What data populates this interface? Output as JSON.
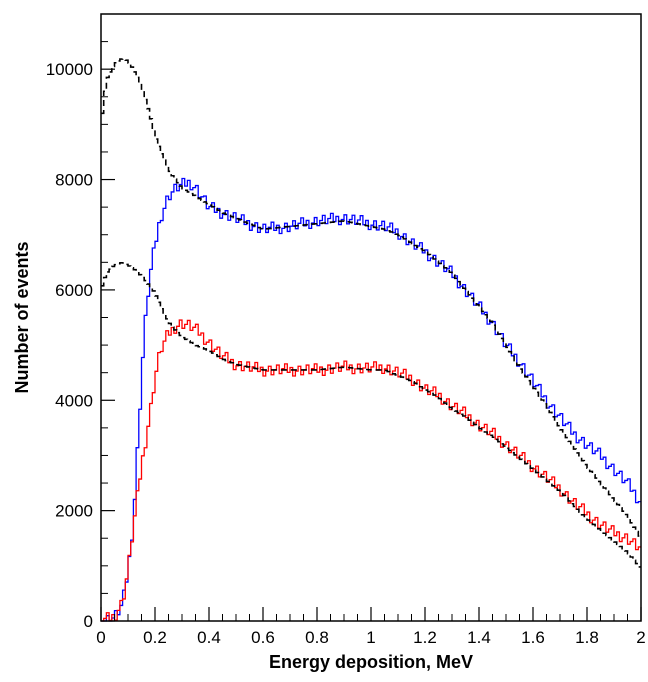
{
  "chart_data": {
    "type": "line",
    "xlabel": "Energy deposition, MeV",
    "ylabel": "Number of events",
    "xlim": [
      0,
      2
    ],
    "ylim": [
      0,
      11000
    ],
    "x_ticks": [
      0,
      0.2,
      0.4,
      0.6,
      0.8,
      1,
      1.2,
      1.4,
      1.6,
      1.8,
      2
    ],
    "x_tick_labels": [
      "0",
      "0.2",
      "0.4",
      "0.6",
      "0.8",
      "1",
      "1.2",
      "1.4",
      "1.6",
      "1.8",
      "2"
    ],
    "y_ticks": [
      0,
      2000,
      4000,
      6000,
      8000,
      10000
    ],
    "y_tick_labels": [
      "0",
      "2000",
      "4000",
      "6000",
      "8000",
      "10000"
    ],
    "grid": false,
    "legend": "none",
    "series": [
      {
        "color": "#0000ff",
        "dash": "solid",
        "points": [
          [
            0,
            0
          ],
          [
            0.05,
            60
          ],
          [
            0.08,
            300
          ],
          [
            0.1,
            900
          ],
          [
            0.12,
            1800
          ],
          [
            0.14,
            3500
          ],
          [
            0.16,
            5200
          ],
          [
            0.18,
            6200
          ],
          [
            0.2,
            6800
          ],
          [
            0.22,
            7300
          ],
          [
            0.25,
            7700
          ],
          [
            0.28,
            7850
          ],
          [
            0.3,
            7900
          ],
          [
            0.33,
            7950
          ],
          [
            0.36,
            7800
          ],
          [
            0.4,
            7500
          ],
          [
            0.45,
            7400
          ],
          [
            0.5,
            7300
          ],
          [
            0.55,
            7200
          ],
          [
            0.6,
            7100
          ],
          [
            0.7,
            7150
          ],
          [
            0.8,
            7250
          ],
          [
            0.9,
            7300
          ],
          [
            1.0,
            7200
          ],
          [
            1.05,
            7150
          ],
          [
            1.1,
            7050
          ],
          [
            1.15,
            6850
          ],
          [
            1.2,
            6700
          ],
          [
            1.25,
            6500
          ],
          [
            1.3,
            6300
          ],
          [
            1.35,
            6000
          ],
          [
            1.4,
            5700
          ],
          [
            1.45,
            5400
          ],
          [
            1.5,
            5000
          ],
          [
            1.55,
            4700
          ],
          [
            1.6,
            4350
          ],
          [
            1.65,
            4000
          ],
          [
            1.7,
            3700
          ],
          [
            1.75,
            3400
          ],
          [
            1.8,
            3200
          ],
          [
            1.85,
            3000
          ],
          [
            1.9,
            2750
          ],
          [
            1.95,
            2500
          ],
          [
            2.0,
            2150
          ]
        ]
      },
      {
        "color": "#ff0000",
        "dash": "solid",
        "points": [
          [
            0,
            0
          ],
          [
            0.05,
            80
          ],
          [
            0.08,
            350
          ],
          [
            0.1,
            900
          ],
          [
            0.12,
            1700
          ],
          [
            0.15,
            2800
          ],
          [
            0.18,
            3700
          ],
          [
            0.2,
            4400
          ],
          [
            0.22,
            4900
          ],
          [
            0.25,
            5200
          ],
          [
            0.28,
            5350
          ],
          [
            0.3,
            5400
          ],
          [
            0.33,
            5350
          ],
          [
            0.36,
            5250
          ],
          [
            0.4,
            5050
          ],
          [
            0.45,
            4800
          ],
          [
            0.5,
            4650
          ],
          [
            0.55,
            4600
          ],
          [
            0.6,
            4550
          ],
          [
            0.7,
            4550
          ],
          [
            0.8,
            4550
          ],
          [
            0.9,
            4600
          ],
          [
            1.0,
            4580
          ],
          [
            1.05,
            4600
          ],
          [
            1.1,
            4500
          ],
          [
            1.15,
            4400
          ],
          [
            1.2,
            4200
          ],
          [
            1.25,
            4100
          ],
          [
            1.3,
            3900
          ],
          [
            1.35,
            3750
          ],
          [
            1.4,
            3550
          ],
          [
            1.45,
            3400
          ],
          [
            1.5,
            3200
          ],
          [
            1.55,
            3000
          ],
          [
            1.6,
            2800
          ],
          [
            1.65,
            2600
          ],
          [
            1.7,
            2400
          ],
          [
            1.75,
            2150
          ],
          [
            1.8,
            1950
          ],
          [
            1.85,
            1750
          ],
          [
            1.9,
            1600
          ],
          [
            1.95,
            1500
          ],
          [
            2.0,
            1300
          ]
        ]
      },
      {
        "color": "#000000",
        "dash": "dashed",
        "points": [
          [
            0,
            9000
          ],
          [
            0.02,
            9800
          ],
          [
            0.05,
            10100
          ],
          [
            0.08,
            10200
          ],
          [
            0.1,
            10150
          ],
          [
            0.12,
            10000
          ],
          [
            0.15,
            9700
          ],
          [
            0.18,
            9200
          ],
          [
            0.2,
            8800
          ],
          [
            0.23,
            8400
          ],
          [
            0.26,
            8100
          ],
          [
            0.3,
            7850
          ],
          [
            0.35,
            7700
          ],
          [
            0.4,
            7550
          ],
          [
            0.45,
            7400
          ],
          [
            0.5,
            7300
          ],
          [
            0.55,
            7200
          ],
          [
            0.6,
            7100
          ],
          [
            0.7,
            7150
          ],
          [
            0.8,
            7200
          ],
          [
            0.9,
            7250
          ],
          [
            1.0,
            7150
          ],
          [
            1.05,
            7100
          ],
          [
            1.1,
            7000
          ],
          [
            1.15,
            6850
          ],
          [
            1.2,
            6700
          ],
          [
            1.25,
            6500
          ],
          [
            1.3,
            6300
          ],
          [
            1.35,
            6000
          ],
          [
            1.4,
            5700
          ],
          [
            1.45,
            5400
          ],
          [
            1.5,
            5000
          ],
          [
            1.55,
            4600
          ],
          [
            1.6,
            4250
          ],
          [
            1.65,
            3900
          ],
          [
            1.7,
            3500
          ],
          [
            1.75,
            3150
          ],
          [
            1.8,
            2800
          ],
          [
            1.85,
            2500
          ],
          [
            1.9,
            2200
          ],
          [
            1.95,
            1900
          ],
          [
            2.0,
            1500
          ]
        ]
      },
      {
        "color": "#000000",
        "dash": "dashed",
        "points": [
          [
            0,
            6000
          ],
          [
            0.02,
            6300
          ],
          [
            0.05,
            6450
          ],
          [
            0.08,
            6500
          ],
          [
            0.1,
            6450
          ],
          [
            0.13,
            6350
          ],
          [
            0.16,
            6200
          ],
          [
            0.2,
            5950
          ],
          [
            0.23,
            5600
          ],
          [
            0.26,
            5350
          ],
          [
            0.3,
            5150
          ],
          [
            0.35,
            5000
          ],
          [
            0.4,
            4900
          ],
          [
            0.45,
            4750
          ],
          [
            0.5,
            4650
          ],
          [
            0.55,
            4600
          ],
          [
            0.6,
            4550
          ],
          [
            0.7,
            4550
          ],
          [
            0.8,
            4550
          ],
          [
            0.9,
            4600
          ],
          [
            1.0,
            4550
          ],
          [
            1.05,
            4550
          ],
          [
            1.1,
            4450
          ],
          [
            1.15,
            4350
          ],
          [
            1.2,
            4200
          ],
          [
            1.25,
            4050
          ],
          [
            1.3,
            3850
          ],
          [
            1.35,
            3700
          ],
          [
            1.4,
            3500
          ],
          [
            1.45,
            3350
          ],
          [
            1.5,
            3150
          ],
          [
            1.55,
            2950
          ],
          [
            1.6,
            2750
          ],
          [
            1.65,
            2550
          ],
          [
            1.7,
            2350
          ],
          [
            1.75,
            2100
          ],
          [
            1.8,
            1850
          ],
          [
            1.85,
            1650
          ],
          [
            1.9,
            1450
          ],
          [
            1.95,
            1250
          ],
          [
            2.0,
            950
          ]
        ]
      }
    ]
  }
}
